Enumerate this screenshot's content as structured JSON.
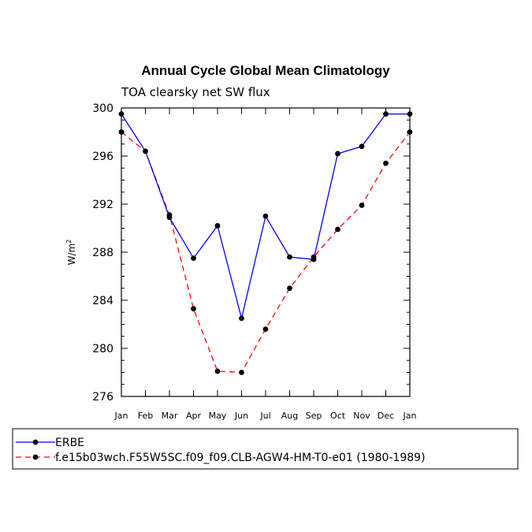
{
  "chart_data": {
    "type": "line",
    "title": "Annual Cycle Global Mean Climatology",
    "subtitle": "TOA clearsky net SW flux",
    "xlabel": "",
    "ylabel": "W/m",
    "ylabel_superscript": "2",
    "categories": [
      "Jan",
      "Feb",
      "Mar",
      "Apr",
      "May",
      "Jun",
      "Jul",
      "Aug",
      "Sep",
      "Oct",
      "Nov",
      "Dec",
      "Jan"
    ],
    "ylim": [
      276,
      300
    ],
    "yticks": [
      276,
      280,
      284,
      288,
      292,
      296,
      300
    ],
    "series": [
      {
        "name": "ERBE",
        "color": "#0000ff",
        "dash": "solid",
        "values": [
          299.5,
          296.4,
          290.9,
          287.5,
          290.2,
          282.5,
          291.0,
          287.6,
          287.4,
          296.2,
          296.8,
          299.5,
          299.5
        ]
      },
      {
        "name": "f.e15b03wch.F55W5SC.f09_f09.CLB-AGW4-HM-T0-e01 (1980-1989)",
        "color": "#ff0000",
        "dash": "dashed",
        "values": [
          298.0,
          296.4,
          291.1,
          283.3,
          278.1,
          278.0,
          281.6,
          285.0,
          287.6,
          289.9,
          291.9,
          295.4,
          298.0
        ]
      }
    ]
  }
}
